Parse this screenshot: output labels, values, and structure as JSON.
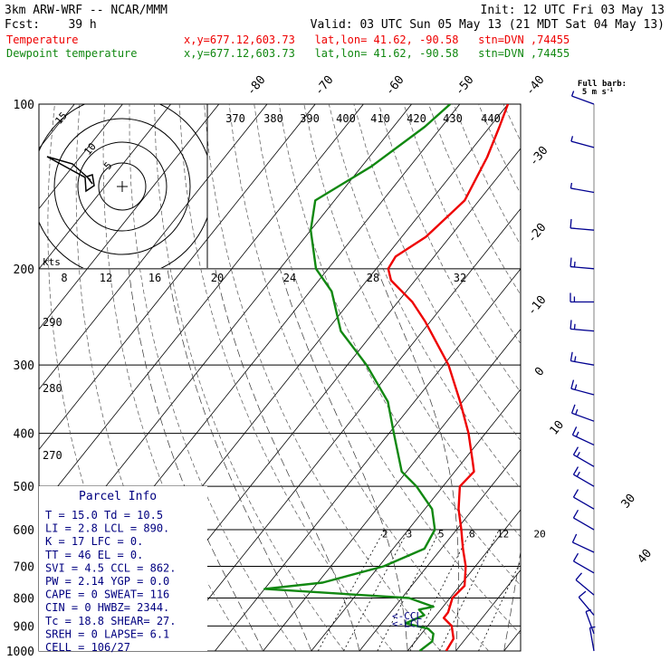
{
  "header": {
    "title": "3km ARW-WRF -- NCAR/MMM",
    "init": "Init: 12 UTC Fri 03 May 13",
    "fcst": "Fcst:    39 h",
    "valid": "Valid: 03 UTC Sun 05 May 13 (21 MDT Sat 04 May 13)",
    "temp_label": "Temperature",
    "temp_info": "x,y=677.12,603.73   lat,lon= 41.62, -90.58   stn=DVN ,74455",
    "dew_label": "Dewpoint temperature",
    "dew_info": "x,y=677.12,603.73   lat,lon= 41.62, -90.58   stn=DVN ,74455",
    "barb_title_1": "Full barb:",
    "barb_title_2": "5 m s",
    "barb_title_sup": "-1"
  },
  "colors": {
    "temperature": "#ee0000",
    "dewpoint": "#118811",
    "parcel_text": "#000080",
    "barbs": "#000090"
  },
  "parcel_info": {
    "title": "Parcel Info",
    "rows": [
      "T  =   15.0  Td =  10.5",
      "LI =    2.8  LCL =  890.",
      "K  =     17  LFC =    0.",
      "TT =     46  EL  =    0.",
      "SVI =   4.5  CCL =  862.",
      "PW =   2.14  YGP =   0.0",
      "CAPE =    0  SWEAT=  116",
      "CIN  =    0  HWBZ= 2344.",
      "Tc  =  18.8  SHEAR=  27.",
      "SREH =    0  LAPSE=  6.1",
      "CELL = 106/27"
    ]
  },
  "annotations": {
    "ccl": "<-CCL",
    "lcl": "<-LCL"
  },
  "hodograph": {
    "unit": "kts",
    "ring_labels": [
      "5",
      "10",
      "15"
    ],
    "top_axis_ticks": [
      "8",
      "12",
      "16",
      "20",
      "24",
      "28",
      "32"
    ],
    "theta_labels": [
      "370",
      "380",
      "390",
      "400",
      "410",
      "420",
      "430",
      "440"
    ],
    "left_theta_labels": [
      "290",
      "280",
      "270"
    ]
  },
  "chart_data": {
    "type": "line",
    "title": "Skew-T log-P sounding",
    "y_axis": {
      "quantity": "pressure (hPa)",
      "scale": "log",
      "ticks": [
        100,
        200,
        300,
        400,
        500,
        600,
        700,
        800,
        900,
        1000
      ]
    },
    "isotherm_labels": [
      "-80",
      "-70",
      "-60",
      "-50",
      "-40",
      "-30",
      "-20",
      "-10",
      "0",
      "10",
      "30",
      "40"
    ],
    "mixing_ratio_labels": [
      "2",
      "3",
      "5",
      "8",
      "12",
      "20"
    ],
    "series": [
      {
        "name": "Temperature",
        "points": [
          [
            1000,
            18.0
          ],
          [
            950,
            17.5
          ],
          [
            900,
            15.0
          ],
          [
            870,
            12.0
          ],
          [
            850,
            12.0
          ],
          [
            800,
            10.5
          ],
          [
            760,
            11.0
          ],
          [
            700,
            8.0
          ],
          [
            650,
            4.5
          ],
          [
            600,
            1.0
          ],
          [
            550,
            -3.0
          ],
          [
            500,
            -6.5
          ],
          [
            470,
            -6.0
          ],
          [
            450,
            -8.0
          ],
          [
            400,
            -13.5
          ],
          [
            350,
            -20.5
          ],
          [
            300,
            -29.0
          ],
          [
            250,
            -41.0
          ],
          [
            230,
            -47.0
          ],
          [
            210,
            -55.0
          ],
          [
            200,
            -57.5
          ],
          [
            190,
            -58.0
          ],
          [
            175,
            -55.0
          ],
          [
            150,
            -53.0
          ],
          [
            125,
            -55.5
          ],
          [
            110,
            -58.0
          ],
          [
            100,
            -60.0
          ]
        ]
      },
      {
        "name": "Dewpoint temperature",
        "points": [
          [
            1000,
            12.5
          ],
          [
            960,
            13.5
          ],
          [
            930,
            12.5
          ],
          [
            910,
            10.5
          ],
          [
            890,
            5.0
          ],
          [
            860,
            7.5
          ],
          [
            840,
            5.5
          ],
          [
            830,
            8.0
          ],
          [
            800,
            1.5
          ],
          [
            770,
            -30.0
          ],
          [
            750,
            -19.0
          ],
          [
            700,
            -9.0
          ],
          [
            650,
            -3.5
          ],
          [
            600,
            -4.5
          ],
          [
            550,
            -8.5
          ],
          [
            500,
            -15.5
          ],
          [
            470,
            -21.0
          ],
          [
            400,
            -29.0
          ],
          [
            350,
            -35.5
          ],
          [
            300,
            -46.0
          ],
          [
            260,
            -57.0
          ],
          [
            220,
            -65.5
          ],
          [
            200,
            -72.5
          ],
          [
            170,
            -80.0
          ],
          [
            150,
            -84.0
          ],
          [
            130,
            -78.0
          ],
          [
            110,
            -73.5
          ],
          [
            100,
            -72.0
          ]
        ]
      }
    ],
    "wind_barbs": [
      {
        "p": 100,
        "dir": 290,
        "spd": 5
      },
      {
        "p": 120,
        "dir": 285,
        "spd": 5
      },
      {
        "p": 145,
        "dir": 280,
        "spd": 5
      },
      {
        "p": 170,
        "dir": 275,
        "spd": 10
      },
      {
        "p": 200,
        "dir": 275,
        "spd": 15
      },
      {
        "p": 230,
        "dir": 270,
        "spd": 15
      },
      {
        "p": 260,
        "dir": 275,
        "spd": 15
      },
      {
        "p": 300,
        "dir": 280,
        "spd": 15
      },
      {
        "p": 340,
        "dir": 285,
        "spd": 15
      },
      {
        "p": 380,
        "dir": 290,
        "spd": 15
      },
      {
        "p": 420,
        "dir": 295,
        "spd": 15
      },
      {
        "p": 460,
        "dir": 300,
        "spd": 15
      },
      {
        "p": 500,
        "dir": 300,
        "spd": 15
      },
      {
        "p": 550,
        "dir": 300,
        "spd": 10
      },
      {
        "p": 600,
        "dir": 300,
        "spd": 10
      },
      {
        "p": 660,
        "dir": 295,
        "spd": 10
      },
      {
        "p": 720,
        "dir": 300,
        "spd": 10
      },
      {
        "p": 790,
        "dir": 310,
        "spd": 10
      },
      {
        "p": 860,
        "dir": 320,
        "spd": 10
      },
      {
        "p": 930,
        "dir": 340,
        "spd": 5
      },
      {
        "p": 1000,
        "dir": 350,
        "spd": 5
      }
    ]
  }
}
